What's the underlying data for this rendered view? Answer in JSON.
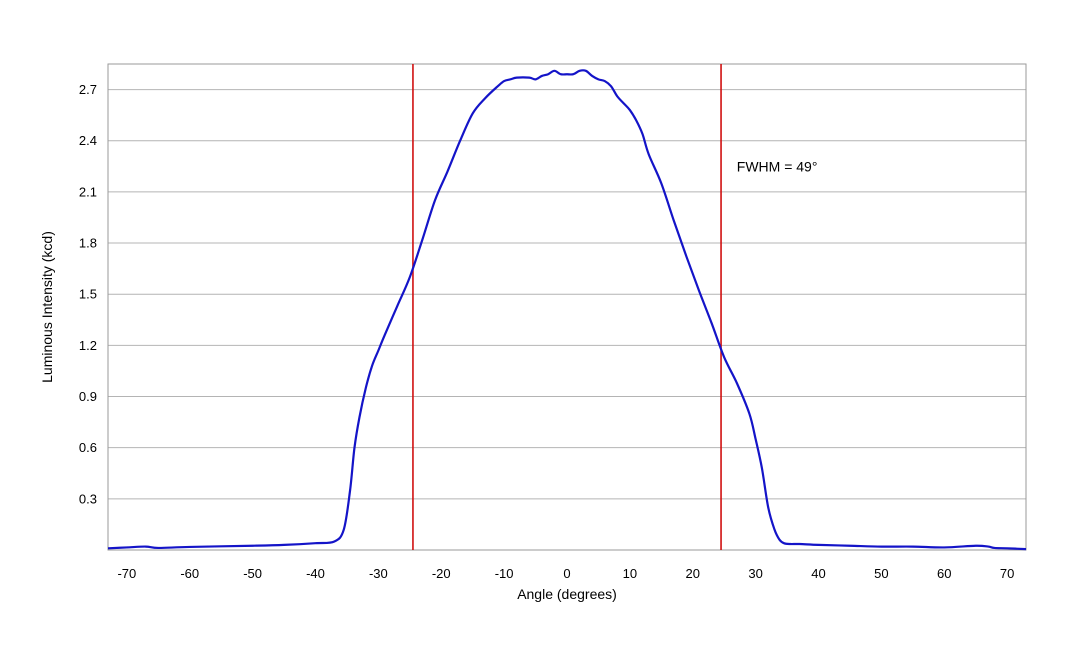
{
  "chart_data": {
    "type": "line",
    "title": "",
    "xlabel": "Angle (degrees)",
    "ylabel": "Luminous Intensity (kcd)",
    "xlim": [
      -73,
      73
    ],
    "ylim": [
      0,
      2.85
    ],
    "xticks": [
      -70,
      -60,
      -50,
      -40,
      -30,
      -20,
      -10,
      0,
      10,
      20,
      30,
      40,
      50,
      60,
      70
    ],
    "yticks": [
      0.3,
      0.6,
      0.9,
      1.2,
      1.5,
      1.8,
      2.1,
      2.4,
      2.7
    ],
    "ytick_labels": [
      "0.3",
      "0.6",
      "0.9",
      "1.2",
      "1.5",
      "1.8",
      "2.1",
      "2.4",
      "2.7"
    ],
    "grid": "horizontal",
    "colors": {
      "series": "#1414c8",
      "markers": "#d01010",
      "grid": "#b4b4b4",
      "frame": "#9a9a9a"
    },
    "series": [
      {
        "x": [
          -73,
          -70,
          -67,
          -65,
          -60,
          -50,
          -45,
          -40,
          -37,
          -35.5,
          -34.5,
          -33.8,
          -33,
          -32,
          -31,
          -30,
          -29,
          -27,
          -25,
          -23,
          -21,
          -19,
          -17,
          -15,
          -13,
          -11,
          -10,
          -9,
          -8,
          -6,
          -5,
          -4,
          -3,
          -2,
          -1,
          0,
          1,
          2,
          3,
          4,
          5,
          6,
          7,
          8,
          9,
          10,
          11,
          12,
          13,
          15,
          17,
          19,
          21,
          23,
          25,
          27,
          29,
          30,
          31,
          32,
          33,
          33.8,
          34.5,
          35.5,
          37,
          40,
          45,
          50,
          55,
          60,
          65,
          67,
          68,
          70,
          73
        ],
        "y": [
          0.01,
          0.015,
          0.02,
          0.012,
          0.018,
          0.025,
          0.03,
          0.04,
          0.05,
          0.12,
          0.35,
          0.6,
          0.78,
          0.95,
          1.08,
          1.17,
          1.26,
          1.43,
          1.6,
          1.82,
          2.05,
          2.22,
          2.4,
          2.56,
          2.65,
          2.72,
          2.75,
          2.76,
          2.77,
          2.77,
          2.76,
          2.78,
          2.79,
          2.81,
          2.79,
          2.79,
          2.79,
          2.81,
          2.81,
          2.78,
          2.76,
          2.75,
          2.72,
          2.66,
          2.62,
          2.58,
          2.52,
          2.44,
          2.32,
          2.15,
          1.93,
          1.72,
          1.52,
          1.33,
          1.13,
          0.98,
          0.8,
          0.65,
          0.48,
          0.25,
          0.12,
          0.06,
          0.04,
          0.035,
          0.035,
          0.03,
          0.025,
          0.02,
          0.02,
          0.015,
          0.025,
          0.02,
          0.012,
          0.01,
          0.005
        ]
      }
    ],
    "vertical_markers": [
      -24.5,
      24.5
    ],
    "annotations": [
      {
        "text": "FWHM = 49°",
        "x": 27,
        "y": 2.25
      }
    ]
  }
}
